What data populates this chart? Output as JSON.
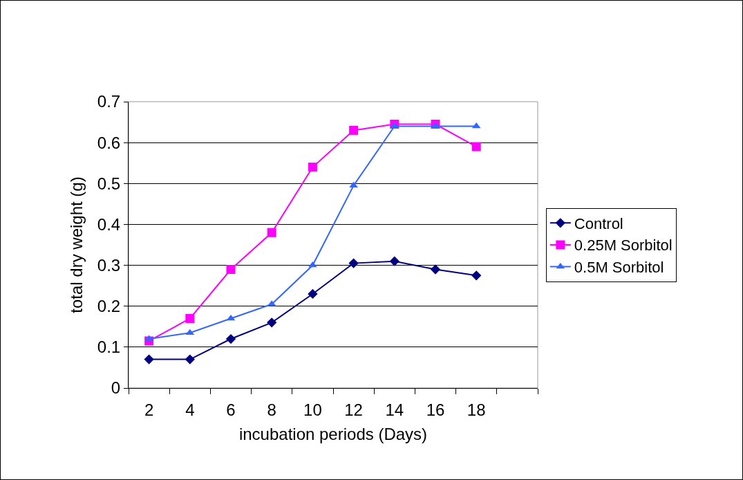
{
  "chart_data": {
    "type": "line",
    "xlabel": "incubation periods (Days)",
    "ylabel": "total dry weight (g)",
    "categories": [
      "2",
      "4",
      "6",
      "8",
      "10",
      "12",
      "14",
      "16",
      "18",
      null
    ],
    "series": [
      {
        "name": "Control",
        "color": "#000080",
        "marker": "diamond",
        "values": [
          0.07,
          0.07,
          0.12,
          0.16,
          0.23,
          0.305,
          0.31,
          0.29,
          0.275,
          null
        ]
      },
      {
        "name": "0.25M Sorbitol",
        "color": "#ff00ff",
        "marker": "square",
        "values": [
          0.115,
          0.17,
          0.29,
          0.38,
          0.54,
          0.63,
          0.645,
          0.645,
          0.59,
          null
        ]
      },
      {
        "name": "0.5M Sorbitol",
        "color": "#3366ff",
        "marker": "triangle",
        "values": [
          0.12,
          0.135,
          0.17,
          0.205,
          0.3,
          0.495,
          0.64,
          0.64,
          0.64,
          null
        ]
      }
    ],
    "ylim": [
      0,
      0.7
    ],
    "yticks": [
      0,
      0.1,
      0.2,
      0.3,
      0.4,
      0.5,
      0.6,
      0.7
    ],
    "grid": "y",
    "legend": "right"
  }
}
